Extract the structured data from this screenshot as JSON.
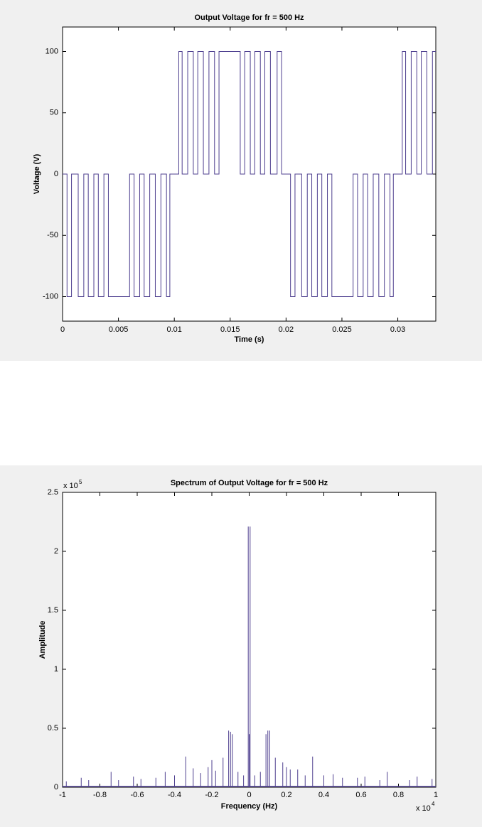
{
  "chart_data": [
    {
      "type": "stairs",
      "title": "Output Voltage for fr = 500 Hz",
      "xlabel": "Time (s)",
      "ylabel": "Voltage (V)",
      "color": "#4e3f8f",
      "x": [
        0,
        0.0004,
        0.0008,
        0.0014,
        0.0019,
        0.0023,
        0.0028,
        0.0032,
        0.0037,
        0.0041,
        0.006,
        0.0064,
        0.0069,
        0.0073,
        0.0078,
        0.0083,
        0.0088,
        0.0093,
        0.0096,
        0.0104,
        0.0107,
        0.0112,
        0.0117,
        0.0121,
        0.0126,
        0.0131,
        0.0136,
        0.014,
        0.0159,
        0.0163,
        0.0168,
        0.0172,
        0.0177,
        0.0181,
        0.0186,
        0.0192,
        0.0196,
        0.0204,
        0.0208,
        0.0214,
        0.0219,
        0.0223,
        0.0228,
        0.0232,
        0.0237,
        0.0241,
        0.026,
        0.0264,
        0.0269,
        0.0273,
        0.0278,
        0.0283,
        0.0288,
        0.0293,
        0.0296,
        0.0304,
        0.0307,
        0.0312,
        0.0317,
        0.0321,
        0.0326,
        0.0331,
        0.0334
      ],
      "values": [
        0,
        -100,
        0,
        -100,
        0,
        -100,
        0,
        -100,
        0,
        -100,
        0,
        -100,
        0,
        -100,
        0,
        -100,
        0,
        -100,
        0,
        100,
        0,
        100,
        0,
        100,
        0,
        100,
        0,
        100,
        0,
        100,
        0,
        100,
        0,
        100,
        0,
        100,
        0,
        -100,
        0,
        -100,
        0,
        -100,
        0,
        -100,
        0,
        -100,
        0,
        -100,
        0,
        -100,
        0,
        -100,
        0,
        -100,
        0,
        100,
        0,
        100,
        0,
        100,
        0,
        100,
        100
      ],
      "xlim": [
        0,
        0.0334
      ],
      "xticks": [
        0,
        0.005,
        0.01,
        0.015,
        0.02,
        0.025,
        0.03
      ],
      "ylim": [
        -120,
        120
      ],
      "yticks": [
        -100,
        -50,
        0,
        50,
        100
      ]
    },
    {
      "type": "stem",
      "title": "Spectrum of Output Voltage for fr = 500 Hz",
      "xlabel": "Frequency (Hz)",
      "ylabel": "Amplitude",
      "color": "#4e3f8f",
      "x_multiplier": {
        "base": "x 10",
        "exponent": "4"
      },
      "y_multiplier": {
        "base": "x 10",
        "exponent": "5"
      },
      "x": [
        -9800,
        -9000,
        -8600,
        -7400,
        -7000,
        -6200,
        -5800,
        -5000,
        -4500,
        -4000,
        -3400,
        -3000,
        -2600,
        -2200,
        -2000,
        -1800,
        -1400,
        -1100,
        -1000,
        -900,
        -600,
        -300,
        -50,
        0,
        50,
        300,
        600,
        900,
        1000,
        1100,
        1400,
        1800,
        2000,
        2200,
        2600,
        3000,
        3400,
        4000,
        4500,
        5000,
        5800,
        6200,
        7000,
        7400,
        8600,
        9000,
        9800
      ],
      "values": [
        5000,
        8000,
        6000,
        13000,
        6000,
        9000,
        7000,
        8000,
        13000,
        10000,
        26000,
        16000,
        12000,
        17000,
        23000,
        14000,
        25000,
        48000,
        47000,
        45000,
        13000,
        10000,
        221000,
        45000,
        221000,
        10000,
        13000,
        45000,
        48000,
        48000,
        25000,
        21000,
        17000,
        15000,
        15000,
        10000,
        26000,
        10000,
        11000,
        8000,
        8000,
        9000,
        6000,
        13000,
        6000,
        9000,
        7000
      ],
      "xlim": [
        -10000,
        10000
      ],
      "xticks": [
        {
          "value": -10000,
          "label": "-1"
        },
        {
          "value": -8000,
          "label": "-0.8"
        },
        {
          "value": -6000,
          "label": "-0.6"
        },
        {
          "value": -4000,
          "label": "-0.4"
        },
        {
          "value": -2000,
          "label": "-0.2"
        },
        0,
        {
          "value": 2000,
          "label": "0.2"
        },
        {
          "value": 4000,
          "label": "0.4"
        },
        {
          "value": 6000,
          "label": "0.6"
        },
        {
          "value": 8000,
          "label": "0.8"
        },
        {
          "value": 10000,
          "label": "1"
        }
      ],
      "ylim": [
        0,
        250000
      ],
      "yticks": [
        0,
        {
          "value": 50000,
          "label": "0.5"
        },
        {
          "value": 100000,
          "label": "1"
        },
        {
          "value": 150000,
          "label": "1.5"
        },
        {
          "value": 200000,
          "label": "2"
        },
        {
          "value": 250000,
          "label": "2.5"
        }
      ]
    }
  ]
}
